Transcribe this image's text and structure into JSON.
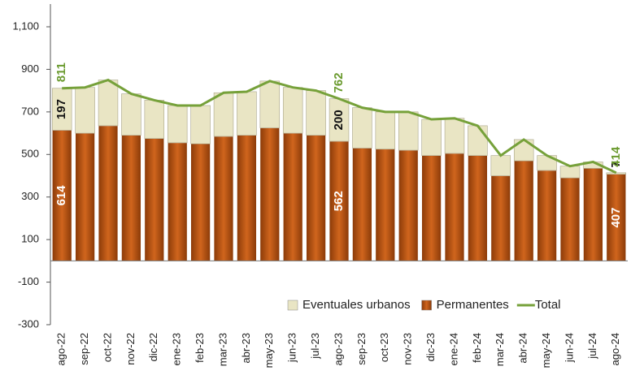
{
  "chart_data": {
    "type": "stacked-bar-line",
    "categories": [
      "ago-22",
      "sep-22",
      "oct-22",
      "nov-22",
      "dic-22",
      "ene-23",
      "feb-23",
      "mar-23",
      "abr-23",
      "may-23",
      "jun-23",
      "jul-23",
      "ago-23",
      "sep-23",
      "oct-23",
      "nov-23",
      "dic-23",
      "ene-24",
      "feb-24",
      "mar-24",
      "abr-24",
      "may-24",
      "jun-24",
      "jul-24",
      "ago-24"
    ],
    "series": [
      {
        "name": "Eventuales urbanos",
        "type": "bar",
        "color": "#e9e5c4",
        "label_color": "#111111",
        "values": [
          197,
          215,
          215,
          195,
          180,
          175,
          180,
          205,
          205,
          220,
          215,
          210,
          200,
          190,
          175,
          180,
          170,
          165,
          140,
          95,
          100,
          70,
          55,
          30,
          7
        ],
        "value_labels": [
          "197",
          null,
          null,
          null,
          null,
          null,
          null,
          null,
          null,
          null,
          null,
          null,
          "200",
          null,
          null,
          null,
          null,
          null,
          null,
          null,
          null,
          null,
          null,
          null,
          "7"
        ]
      },
      {
        "name": "Permanentes",
        "type": "bar",
        "color": "#b5500f",
        "label_color": "#ffffff",
        "values": [
          614,
          600,
          635,
          590,
          575,
          555,
          550,
          585,
          590,
          625,
          600,
          590,
          562,
          530,
          525,
          520,
          495,
          505,
          495,
          400,
          470,
          425,
          390,
          435,
          407
        ],
        "value_labels": [
          "614",
          null,
          null,
          null,
          null,
          null,
          null,
          null,
          null,
          null,
          null,
          null,
          "562",
          null,
          null,
          null,
          null,
          null,
          null,
          null,
          null,
          null,
          null,
          null,
          "407"
        ]
      },
      {
        "name": "Total",
        "type": "line",
        "color": "#76a13a",
        "label_color": "#6a9a2e",
        "values": [
          811,
          815,
          850,
          785,
          755,
          730,
          730,
          790,
          795,
          845,
          815,
          800,
          762,
          720,
          700,
          700,
          665,
          670,
          635,
          495,
          570,
          495,
          445,
          465,
          414
        ],
        "value_labels": [
          "811",
          null,
          null,
          null,
          null,
          null,
          null,
          null,
          null,
          null,
          null,
          null,
          "762",
          null,
          null,
          null,
          null,
          null,
          null,
          null,
          null,
          null,
          null,
          null,
          "414"
        ]
      }
    ],
    "ylim": [
      -300,
      1100
    ],
    "yticks": [
      -300,
      -100,
      100,
      300,
      500,
      700,
      900,
      {
        "value": 1100,
        "label": "1,100"
      }
    ],
    "grid": false,
    "legend": "bottom-right"
  }
}
